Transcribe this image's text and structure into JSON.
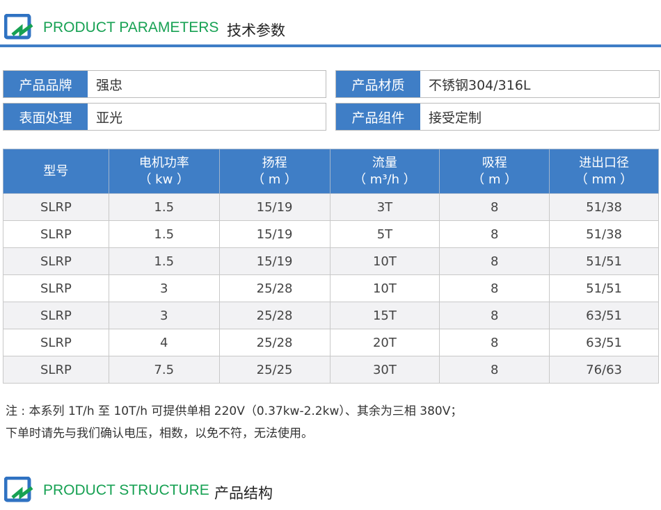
{
  "section1": {
    "en": "PRODUCT PARAMETERS",
    "cn": "技术参数"
  },
  "info": [
    {
      "k": "产品品牌",
      "v": "强忠"
    },
    {
      "k": "产品材质",
      "v": "不锈钢304/316L"
    },
    {
      "k": "表面处理",
      "v": "亚光"
    },
    {
      "k": "产品组件",
      "v": "接受定制"
    }
  ],
  "table": {
    "headers": [
      [
        "型号",
        ""
      ],
      [
        "电机功率",
        "（ kw ）"
      ],
      [
        "扬程",
        "（ m ）"
      ],
      [
        "流量",
        "（ m³/h ）"
      ],
      [
        "吸程",
        "（ m ）"
      ],
      [
        "进出口径",
        "（ mm ）"
      ]
    ],
    "rows": [
      [
        "SLRP",
        "1.5",
        "15/19",
        "3T",
        "8",
        "51/38"
      ],
      [
        "SLRP",
        "1.5",
        "15/19",
        "5T",
        "8",
        "51/38"
      ],
      [
        "SLRP",
        "1.5",
        "15/19",
        "10T",
        "8",
        "51/51"
      ],
      [
        "SLRP",
        "3",
        "25/28",
        "10T",
        "8",
        "51/51"
      ],
      [
        "SLRP",
        "3",
        "25/28",
        "15T",
        "8",
        "63/51"
      ],
      [
        "SLRP",
        "4",
        "25/28",
        "20T",
        "8",
        "63/51"
      ],
      [
        "SLRP",
        "7.5",
        "25/25",
        "30T",
        "8",
        "76/63"
      ]
    ]
  },
  "note": [
    "注 : 本系列 1T/h 至 10T/h 可提供单相 220V（0.37kw-2.2kw）、其余为三相 380V；",
    "下单时请先与我们确认电压，相数，以免不符，无法使用。"
  ],
  "section2": {
    "en": "PRODUCT STRUCTURE",
    "cn": "产品结构"
  }
}
